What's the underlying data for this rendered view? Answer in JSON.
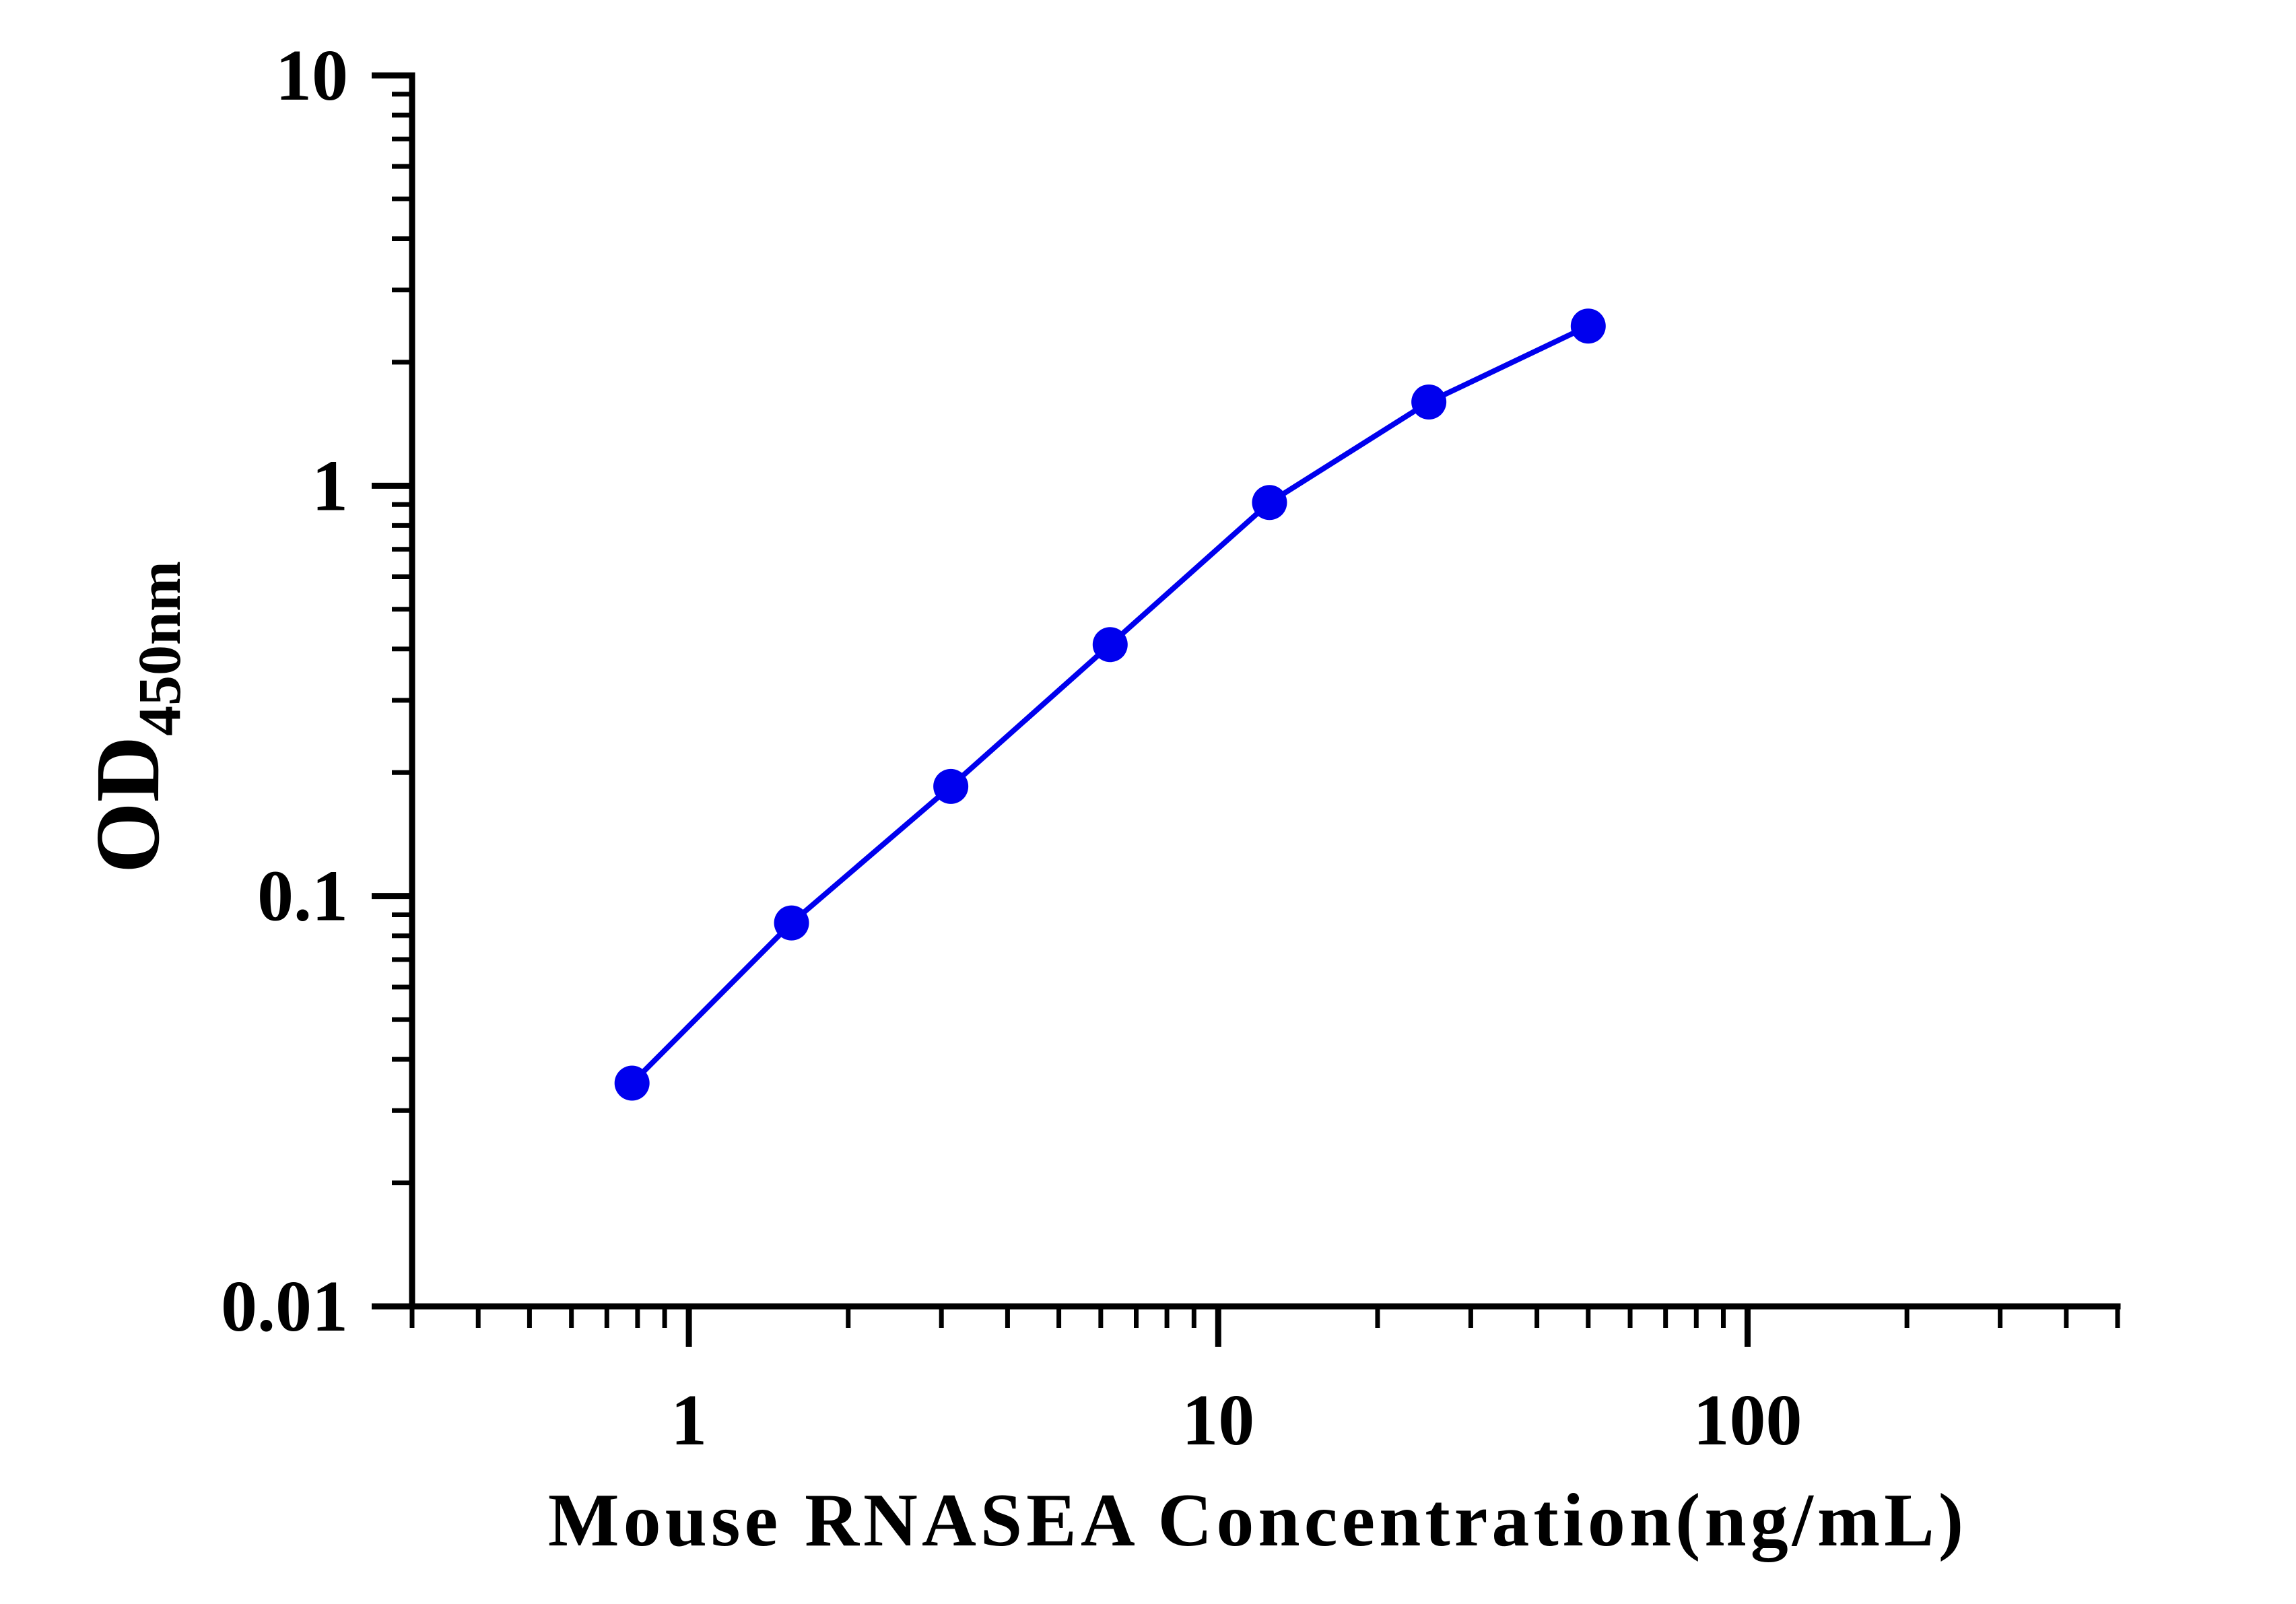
{
  "chart_data": {
    "type": "line",
    "title": "",
    "xlabel": "Mouse RNASEA Concentration(ng/mL)",
    "ylabel": {
      "main": "OD",
      "subscript": "450nm"
    },
    "x_scale": "log",
    "y_scale": "log",
    "xlim": [
      0.3,
      500
    ],
    "ylim": [
      0.01,
      10
    ],
    "x_tick_labels": [
      {
        "value": 1,
        "label": "1"
      },
      {
        "value": 10,
        "label": "10"
      },
      {
        "value": 100,
        "label": "100"
      }
    ],
    "y_tick_labels": [
      {
        "value": 0.01,
        "label": "0.01"
      },
      {
        "value": 0.1,
        "label": "0.1"
      },
      {
        "value": 1,
        "label": "1"
      },
      {
        "value": 10,
        "label": "10"
      }
    ],
    "grid": false,
    "series": [
      {
        "color": "#0000ee",
        "marker": "circle",
        "x": [
          0.781,
          1.563,
          3.125,
          6.25,
          12.5,
          25,
          50
        ],
        "y": [
          0.035,
          0.086,
          0.185,
          0.41,
          0.91,
          1.6,
          2.45
        ]
      }
    ]
  }
}
